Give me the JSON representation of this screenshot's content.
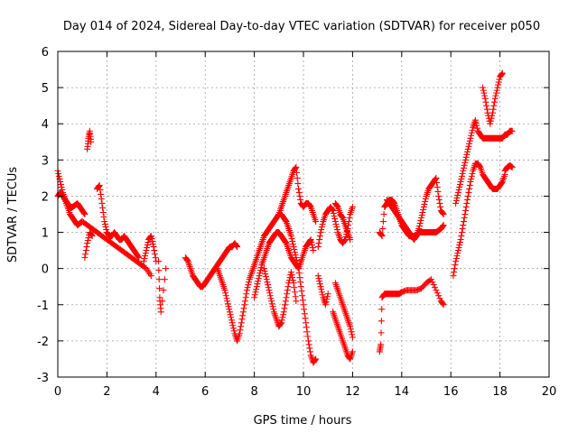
{
  "chart_data": {
    "type": "scatter",
    "title": "Day 014 of 2024, Sidereal Day-to-day VTEC variation (SDTVAR) for receiver p050",
    "xlabel": "GPS time / hours",
    "ylabel": "SDTVAR / TECUs",
    "xlim": [
      0,
      20
    ],
    "ylim": [
      -3,
      6
    ],
    "xticks": [
      "0",
      "2",
      "4",
      "6",
      "8",
      "10",
      "12",
      "14",
      "16",
      "18",
      "20"
    ],
    "yticks": [
      "-3",
      "-2",
      "-1",
      "0",
      "1",
      "2",
      "3",
      "4",
      "5",
      "6"
    ],
    "grid": true,
    "marker": "plus",
    "color": "#ff0000",
    "series": [
      {
        "name": "s1",
        "x": [
          0.0,
          0.1,
          0.2,
          0.3,
          0.4,
          0.5,
          0.6,
          0.7,
          0.8,
          0.9,
          1.0,
          1.2,
          1.4,
          1.6,
          1.8,
          2.0,
          2.2,
          2.4,
          2.6,
          2.8,
          3.0,
          3.2,
          3.4,
          3.6,
          3.8
        ],
        "y": [
          2.7,
          2.4,
          2.1,
          1.9,
          1.7,
          1.5,
          1.4,
          1.3,
          1.2,
          1.25,
          1.3,
          1.2,
          1.1,
          1.0,
          0.9,
          0.8,
          0.7,
          0.6,
          0.5,
          0.4,
          0.3,
          0.2,
          0.1,
          0.0,
          -0.2
        ]
      },
      {
        "name": "s2",
        "x": [
          0.0,
          0.1,
          0.2,
          0.3,
          0.4,
          0.5,
          0.6,
          0.7,
          0.8,
          0.9,
          1.0,
          1.1
        ],
        "y": [
          2.0,
          2.1,
          2.0,
          1.9,
          1.8,
          1.7,
          1.7,
          1.75,
          1.8,
          1.7,
          1.6,
          1.5
        ]
      },
      {
        "name": "s3",
        "x": [
          1.2,
          1.25,
          1.3,
          1.35
        ],
        "y": [
          3.3,
          3.6,
          3.8,
          3.5
        ]
      },
      {
        "name": "s4",
        "x": [
          1.1,
          1.2,
          1.3,
          1.4
        ],
        "y": [
          0.3,
          0.7,
          1.0,
          0.9
        ]
      },
      {
        "name": "s5",
        "x": [
          1.6,
          1.7,
          1.8,
          1.9,
          2.0,
          2.1,
          2.2,
          2.3,
          2.4,
          2.5,
          2.6,
          2.7,
          2.8,
          2.9,
          3.0,
          3.1,
          3.2,
          3.3
        ],
        "y": [
          2.2,
          2.3,
          1.8,
          1.3,
          1.0,
          0.9,
          0.9,
          1.0,
          0.9,
          0.8,
          0.8,
          0.9,
          0.8,
          0.7,
          0.6,
          0.5,
          0.4,
          0.3
        ]
      },
      {
        "name": "s6",
        "x": [
          3.5,
          3.6,
          3.7,
          3.8,
          3.9,
          4.0
        ],
        "y": [
          0.2,
          0.5,
          0.8,
          0.9,
          0.6,
          0.2
        ]
      },
      {
        "name": "s7",
        "x": [
          4.1,
          4.15,
          4.2,
          4.4
        ],
        "y": [
          0.2,
          -0.8,
          -1.2,
          0.0
        ]
      },
      {
        "name": "s8",
        "x": [
          5.2,
          5.3,
          5.4,
          5.5,
          5.6,
          5.7,
          5.8,
          5.9,
          6.0,
          6.1,
          6.2,
          6.3,
          6.4,
          6.5,
          6.6,
          6.7,
          6.8,
          6.9,
          7.0,
          7.1,
          7.2,
          7.3
        ],
        "y": [
          0.3,
          0.2,
          0.0,
          -0.2,
          -0.3,
          -0.4,
          -0.5,
          -0.5,
          -0.4,
          -0.3,
          -0.2,
          -0.1,
          0.0,
          0.1,
          0.2,
          0.3,
          0.4,
          0.5,
          0.6,
          0.6,
          0.7,
          0.6
        ]
      },
      {
        "name": "s9",
        "x": [
          6.5,
          6.6,
          6.7,
          6.8,
          6.9,
          7.0,
          7.1,
          7.2,
          7.3,
          7.4,
          7.5,
          7.6,
          7.7,
          7.8,
          7.9,
          8.0,
          8.1,
          8.2,
          8.3,
          8.4,
          8.5,
          8.6,
          8.7,
          8.8,
          8.9,
          9.0,
          9.1,
          9.2,
          9.3,
          9.4,
          9.5,
          9.6,
          9.7,
          9.8,
          9.9,
          10.0,
          10.1,
          10.2,
          10.3,
          10.4,
          10.5
        ],
        "y": [
          0.0,
          -0.2,
          -0.4,
          -0.6,
          -0.9,
          -1.2,
          -1.5,
          -1.8,
          -2.0,
          -1.8,
          -1.4,
          -1.0,
          -0.6,
          -0.3,
          -0.1,
          0.1,
          0.3,
          0.5,
          0.7,
          0.9,
          1.0,
          1.1,
          1.2,
          1.3,
          1.4,
          1.5,
          1.5,
          1.4,
          1.3,
          1.1,
          0.9,
          0.6,
          0.3,
          0.0,
          -0.5,
          -1.0,
          -1.5,
          -2.0,
          -2.4,
          -2.6,
          -2.5
        ]
      },
      {
        "name": "s10",
        "x": [
          8.0,
          8.1,
          8.2,
          8.3,
          8.4,
          8.5,
          8.6,
          8.7,
          8.8,
          8.9,
          9.0,
          9.1,
          9.2,
          9.3,
          9.4,
          9.5,
          9.6,
          9.7,
          9.8,
          9.9,
          10.0,
          10.1,
          10.2,
          10.3,
          10.4
        ],
        "y": [
          -0.8,
          -0.5,
          -0.2,
          0.1,
          0.3,
          0.5,
          0.7,
          0.8,
          0.9,
          1.0,
          1.0,
          0.9,
          0.8,
          0.7,
          0.5,
          0.3,
          0.2,
          0.1,
          0.0,
          0.2,
          0.4,
          0.6,
          0.7,
          0.8,
          0.5
        ]
      },
      {
        "name": "s11",
        "x": [
          8.4,
          8.5,
          8.6,
          8.7,
          8.8,
          8.9,
          9.0,
          9.1,
          9.2,
          9.3,
          9.4,
          9.5,
          9.6,
          9.7
        ],
        "y": [
          0.0,
          -0.3,
          -0.6,
          -0.9,
          -1.2,
          -1.4,
          -1.6,
          -1.5,
          -1.2,
          -0.8,
          -0.4,
          -0.1,
          -0.4,
          -0.9
        ]
      },
      {
        "name": "s12",
        "x": [
          9.0,
          9.1,
          9.2,
          9.3,
          9.4,
          9.5,
          9.6,
          9.7,
          9.8,
          9.9,
          10.0,
          10.1,
          10.2,
          10.3,
          10.4,
          10.5
        ],
        "y": [
          1.5,
          1.7,
          1.9,
          2.1,
          2.3,
          2.5,
          2.7,
          2.8,
          2.2,
          1.8,
          1.7,
          1.8,
          1.8,
          1.7,
          1.5,
          1.3
        ]
      },
      {
        "name": "s13",
        "x": [
          10.6,
          10.7,
          10.8,
          10.9,
          11.0,
          11.1,
          11.2,
          11.3,
          11.4,
          11.5,
          11.6,
          11.7,
          11.8,
          11.9,
          12.0
        ],
        "y": [
          0.6,
          1.0,
          1.3,
          1.5,
          1.6,
          1.7,
          1.6,
          1.3,
          1.0,
          0.8,
          0.7,
          0.8,
          1.1,
          1.5,
          1.7
        ]
      },
      {
        "name": "s14",
        "x": [
          10.6,
          10.7,
          10.8,
          10.9,
          11.0
        ],
        "y": [
          -0.2,
          -0.5,
          -0.8,
          -1.0,
          -0.7
        ]
      },
      {
        "name": "s15",
        "x": [
          11.2,
          11.3,
          11.4,
          11.5,
          11.6,
          11.7,
          11.8,
          11.9,
          12.0
        ],
        "y": [
          -1.2,
          -1.4,
          -1.6,
          -1.8,
          -2.0,
          -2.2,
          -2.4,
          -2.5,
          -2.3
        ]
      },
      {
        "name": "s16",
        "x": [
          11.3,
          11.4,
          11.5,
          11.6,
          11.7,
          11.8,
          11.9
        ],
        "y": [
          1.8,
          1.7,
          1.5,
          1.4,
          1.2,
          1.0,
          0.8
        ]
      },
      {
        "name": "s17",
        "x": [
          11.3,
          11.4,
          11.5,
          11.6,
          11.7,
          11.8,
          11.9,
          12.0
        ],
        "y": [
          -0.4,
          -0.6,
          -0.8,
          -1.0,
          -1.2,
          -1.4,
          -1.6,
          -1.9
        ]
      },
      {
        "name": "s18",
        "x": [
          13.1,
          13.15,
          13.2,
          13.3,
          13.4,
          13.5,
          13.6,
          13.7,
          13.8,
          13.9,
          14.0,
          14.2,
          14.4,
          14.6,
          14.8,
          15.0,
          15.2,
          15.4,
          15.6,
          15.7
        ],
        "y": [
          -2.3,
          -2.1,
          -0.8,
          -0.7,
          -0.7,
          -0.7,
          -0.7,
          -0.7,
          -0.7,
          -0.7,
          -0.65,
          -0.6,
          -0.6,
          -0.6,
          -0.55,
          -0.4,
          -0.3,
          -0.6,
          -0.9,
          -1.0
        ]
      },
      {
        "name": "s19",
        "x": [
          13.1,
          13.2,
          13.3,
          13.4,
          13.5,
          13.6,
          13.7,
          13.8,
          13.9,
          14.0,
          14.1,
          14.2,
          14.3,
          14.4,
          14.5,
          14.6,
          14.7,
          14.8,
          14.9,
          15.0,
          15.1,
          15.2,
          15.3,
          15.4,
          15.5,
          15.6,
          15.7
        ],
        "y": [
          1.0,
          0.9,
          1.7,
          1.8,
          1.9,
          1.9,
          1.8,
          1.6,
          1.4,
          1.2,
          1.1,
          1.0,
          0.9,
          0.9,
          0.9,
          0.9,
          1.0,
          1.0,
          1.0,
          1.0,
          1.0,
          1.0,
          1.0,
          1.0,
          1.05,
          1.1,
          1.2
        ]
      },
      {
        "name": "s20",
        "x": [
          13.4,
          13.5,
          13.6,
          13.7,
          13.8,
          13.9,
          14.0,
          14.1,
          14.2,
          14.3,
          14.4,
          14.5,
          14.6,
          14.7,
          14.8,
          14.9,
          15.0,
          15.1,
          15.2,
          15.3,
          15.4,
          15.5,
          15.6,
          15.7
        ],
        "y": [
          1.9,
          1.8,
          1.7,
          1.6,
          1.5,
          1.4,
          1.3,
          1.2,
          1.1,
          1.0,
          0.9,
          0.8,
          0.9,
          1.1,
          1.4,
          1.7,
          2.0,
          2.2,
          2.3,
          2.4,
          2.5,
          2.0,
          1.6,
          1.5
        ]
      },
      {
        "name": "s21",
        "x": [
          16.1,
          16.2,
          16.3,
          16.4,
          16.5,
          16.6,
          16.7,
          16.8,
          16.9,
          17.0,
          17.1,
          17.2,
          17.3,
          17.4,
          17.5,
          17.6,
          17.7,
          17.8,
          17.9,
          18.0,
          18.1,
          18.2
        ],
        "y": [
          -0.2,
          0.2,
          0.5,
          0.8,
          1.2,
          1.6,
          2.0,
          2.4,
          2.7,
          2.9,
          2.9,
          2.8,
          2.6,
          2.5,
          2.4,
          2.3,
          2.2,
          2.2,
          2.2,
          2.3,
          2.4,
          2.6
        ]
      },
      {
        "name": "s22",
        "x": [
          16.2,
          16.3,
          16.4,
          16.5,
          16.6,
          16.7,
          16.8,
          16.9,
          17.0,
          17.1,
          17.2,
          17.3,
          17.4,
          17.5,
          17.6,
          17.7,
          17.8,
          17.9,
          18.0,
          18.1,
          18.2,
          18.3,
          18.4,
          18.5
        ],
        "y": [
          1.8,
          2.1,
          2.4,
          2.7,
          3.0,
          3.3,
          3.6,
          3.9,
          4.1,
          3.8,
          3.7,
          3.6,
          3.6,
          3.6,
          3.6,
          3.6,
          3.6,
          3.6,
          3.6,
          3.6,
          3.7,
          3.7,
          3.8,
          3.8
        ]
      },
      {
        "name": "s23",
        "x": [
          17.3,
          17.4,
          17.5,
          17.6,
          17.7,
          17.8,
          17.9,
          18.0,
          18.1
        ],
        "y": [
          5.0,
          4.7,
          4.3,
          4.0,
          4.3,
          4.7,
          5.0,
          5.3,
          5.4
        ]
      },
      {
        "name": "s24",
        "x": [
          18.2,
          18.3,
          18.4,
          18.5
        ],
        "y": [
          2.7,
          2.8,
          2.85,
          2.8
        ]
      }
    ]
  }
}
